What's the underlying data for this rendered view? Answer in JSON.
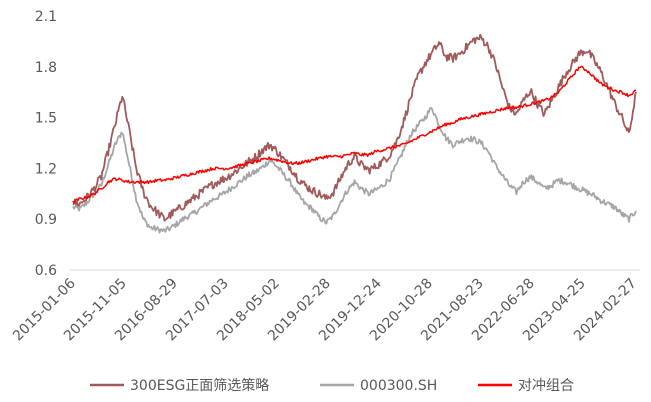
{
  "chart_data": {
    "type": "line",
    "title": "",
    "xlabel": "",
    "ylabel": "",
    "ylim": [
      0.6,
      2.1
    ],
    "y_ticks": [
      "0.6",
      "0.9",
      "1.2",
      "1.5",
      "1.8",
      "2.1"
    ],
    "x_ticks": [
      "2015-01-06",
      "2015-11-05",
      "2016-08-29",
      "2017-07-03",
      "2018-05-02",
      "2019-02-28",
      "2019-12-24",
      "2020-10-28",
      "2021-08-23",
      "2022-06-28",
      "2023-04-25",
      "2024-02-27"
    ],
    "grid": false,
    "legend_position": "bottom",
    "series": [
      {
        "name": "300ESG正面筛选策略",
        "color": "#A05A5A",
        "values": [
          1.0,
          0.99,
          1.03,
          1.08,
          1.15,
          1.3,
          1.46,
          1.63,
          1.42,
          1.2,
          1.06,
          0.98,
          0.94,
          0.9,
          0.93,
          0.96,
          0.99,
          1.02,
          1.05,
          1.08,
          1.11,
          1.13,
          1.15,
          1.18,
          1.21,
          1.24,
          1.27,
          1.31,
          1.34,
          1.3,
          1.25,
          1.2,
          1.14,
          1.1,
          1.07,
          1.05,
          1.02,
          1.06,
          1.14,
          1.22,
          1.27,
          1.22,
          1.19,
          1.21,
          1.24,
          1.28,
          1.36,
          1.48,
          1.62,
          1.74,
          1.82,
          1.88,
          1.94,
          1.86,
          1.85,
          1.88,
          1.92,
          1.96,
          1.97,
          1.92,
          1.82,
          1.68,
          1.56,
          1.52,
          1.6,
          1.66,
          1.58,
          1.52,
          1.6,
          1.68,
          1.76,
          1.82,
          1.88,
          1.9,
          1.84,
          1.77,
          1.68,
          1.58,
          1.5,
          1.4,
          1.65
        ]
      },
      {
        "name": "000300.SH",
        "color": "#A6A6A6",
        "values": [
          0.97,
          0.96,
          1.0,
          1.05,
          1.1,
          1.22,
          1.34,
          1.42,
          1.22,
          1.02,
          0.9,
          0.85,
          0.84,
          0.83,
          0.85,
          0.88,
          0.91,
          0.93,
          0.96,
          0.99,
          1.02,
          1.04,
          1.07,
          1.1,
          1.13,
          1.16,
          1.18,
          1.21,
          1.25,
          1.21,
          1.16,
          1.11,
          1.04,
          0.99,
          0.96,
          0.91,
          0.88,
          0.92,
          1.0,
          1.07,
          1.12,
          1.08,
          1.05,
          1.07,
          1.1,
          1.14,
          1.22,
          1.31,
          1.4,
          1.45,
          1.5,
          1.56,
          1.46,
          1.38,
          1.34,
          1.36,
          1.38,
          1.37,
          1.35,
          1.3,
          1.22,
          1.16,
          1.1,
          1.06,
          1.12,
          1.15,
          1.12,
          1.08,
          1.1,
          1.13,
          1.12,
          1.1,
          1.08,
          1.06,
          1.04,
          1.01,
          0.99,
          0.97,
          0.93,
          0.9,
          0.95
        ]
      },
      {
        "name": "对冲组合",
        "color": "#FF0000",
        "values": [
          1.0,
          1.02,
          1.03,
          1.05,
          1.08,
          1.12,
          1.14,
          1.13,
          1.12,
          1.12,
          1.12,
          1.12,
          1.13,
          1.13,
          1.14,
          1.15,
          1.16,
          1.17,
          1.18,
          1.19,
          1.2,
          1.2,
          1.2,
          1.21,
          1.22,
          1.23,
          1.24,
          1.25,
          1.26,
          1.25,
          1.24,
          1.23,
          1.23,
          1.24,
          1.25,
          1.26,
          1.27,
          1.27,
          1.27,
          1.28,
          1.29,
          1.28,
          1.28,
          1.3,
          1.31,
          1.32,
          1.33,
          1.34,
          1.36,
          1.38,
          1.4,
          1.42,
          1.44,
          1.46,
          1.47,
          1.49,
          1.5,
          1.51,
          1.52,
          1.53,
          1.54,
          1.55,
          1.56,
          1.56,
          1.57,
          1.58,
          1.59,
          1.6,
          1.62,
          1.65,
          1.7,
          1.75,
          1.8,
          1.78,
          1.74,
          1.7,
          1.68,
          1.66,
          1.65,
          1.63,
          1.66
        ]
      }
    ]
  }
}
